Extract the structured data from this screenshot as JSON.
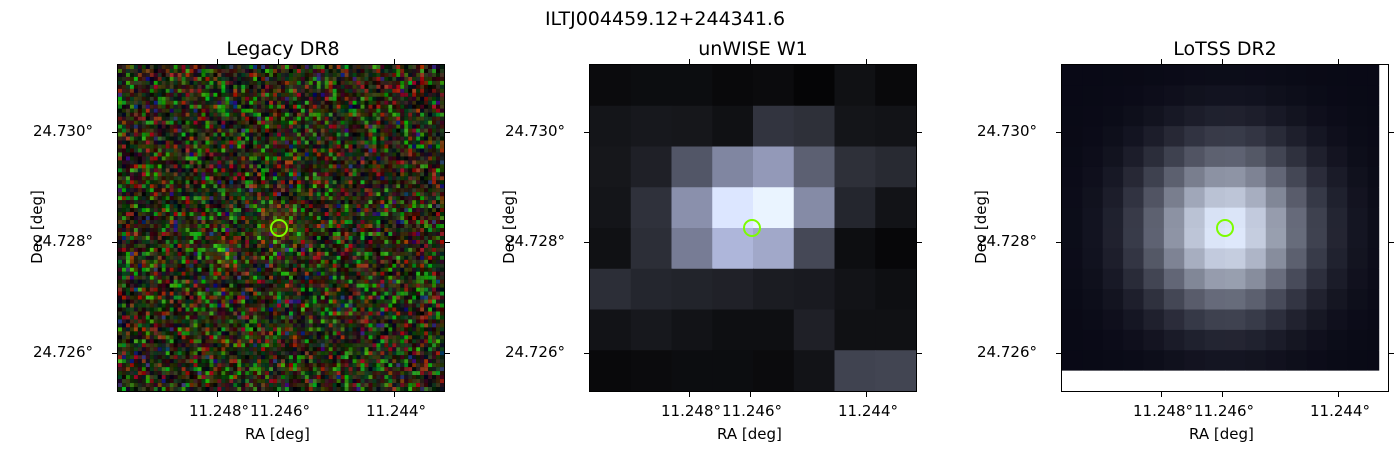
{
  "suptitle": "ILTJ004459.12+244341.6",
  "panels": [
    {
      "title": "Legacy DR8",
      "xlabel": "RA [deg]",
      "ylabel": "Dec [deg]",
      "xticks": [
        "11.248°",
        "11.246°",
        "11.244°"
      ],
      "yticks": [
        "24.730°",
        "24.728°",
        "24.726°"
      ]
    },
    {
      "title": "unWISE W1",
      "xlabel": "RA [deg]",
      "ylabel": "Dec [deg]",
      "xticks": [
        "11.248°",
        "11.246°",
        "11.244°"
      ],
      "yticks": [
        "24.730°",
        "24.728°",
        "24.726°"
      ]
    },
    {
      "title": "LoTSS DR2",
      "xlabel": "RA [deg]",
      "ylabel": "Dec [deg]",
      "xticks": [
        "11.248°",
        "11.246°",
        "11.244°"
      ],
      "yticks": [
        "24.730°",
        "24.728°",
        "24.726°"
      ]
    }
  ],
  "colors": {
    "marker": "#7CFC00"
  }
}
